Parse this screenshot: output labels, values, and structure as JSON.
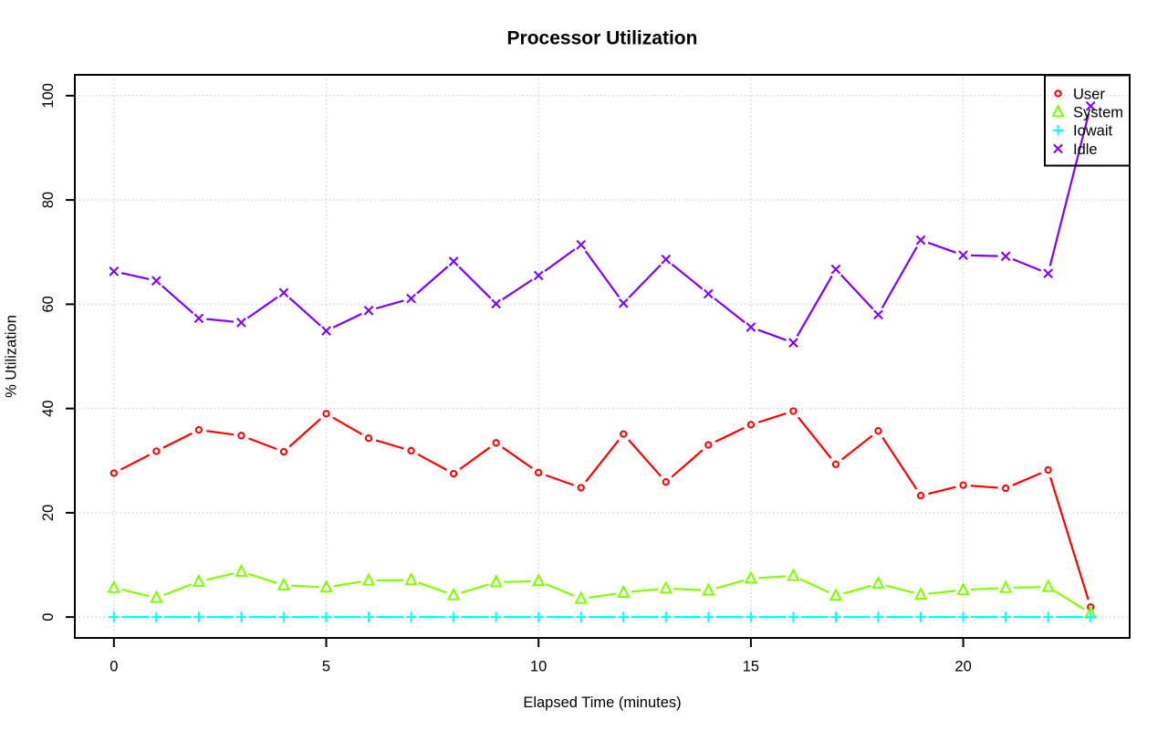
{
  "chart_data": {
    "type": "line",
    "title": "Processor Utilization",
    "xlabel": "Elapsed Time (minutes)",
    "ylabel": "% Utilization",
    "x": [
      0,
      1,
      2,
      3,
      4,
      5,
      6,
      7,
      8,
      9,
      10,
      11,
      12,
      13,
      14,
      15,
      16,
      17,
      18,
      19,
      20,
      21,
      22,
      23
    ],
    "series": [
      {
        "name": "User",
        "color": "#FF0000",
        "marker": "circle",
        "values": [
          27.6,
          31.8,
          35.9,
          34.8,
          31.7,
          39.0,
          34.3,
          31.9,
          27.5,
          33.4,
          27.7,
          24.8,
          35.1,
          25.9,
          33.0,
          36.9,
          39.5,
          29.3,
          35.7,
          23.3,
          25.3,
          24.7,
          28.2,
          1.9
        ]
      },
      {
        "name": "System",
        "color": "#80FF00",
        "marker": "triangle",
        "values": [
          5.6,
          3.7,
          6.8,
          8.7,
          6.1,
          5.7,
          7.0,
          7.1,
          4.2,
          6.7,
          6.9,
          3.5,
          4.7,
          5.5,
          5.1,
          7.4,
          7.9,
          4.1,
          6.4,
          4.3,
          5.2,
          5.6,
          5.8,
          0.7
        ]
      },
      {
        "name": "Iowait",
        "color": "#00FFFF",
        "marker": "plus",
        "values": [
          0,
          0,
          0,
          0,
          0,
          0,
          0,
          0,
          0,
          0,
          0,
          0,
          0,
          0,
          0,
          0,
          0,
          0,
          0,
          0,
          0,
          0,
          0,
          0
        ]
      },
      {
        "name": "Idle",
        "color": "#8000FF",
        "marker": "x",
        "values": [
          66.3,
          64.5,
          57.3,
          56.5,
          62.2,
          54.9,
          58.8,
          61.1,
          68.2,
          60.1,
          65.5,
          71.4,
          60.2,
          68.6,
          62.0,
          55.6,
          52.6,
          66.7,
          58.0,
          72.3,
          69.4,
          69.2,
          65.9,
          98.0
        ]
      }
    ],
    "xticks": [
      0,
      5,
      10,
      15,
      20
    ],
    "yticks": [
      0,
      20,
      40,
      60,
      80,
      100
    ],
    "xlim": [
      -0.92,
      23.92
    ],
    "ylim": [
      -4,
      104
    ],
    "grid": true,
    "grid_color": "#d3d3d3",
    "axis_color": "#000000",
    "background": "#ffffff",
    "legend_position": "topright",
    "legend_labels": [
      "User",
      "System",
      "Iowait",
      "Idle"
    ],
    "point_style": "open markers joined by trimmed segments (R type='b')"
  }
}
